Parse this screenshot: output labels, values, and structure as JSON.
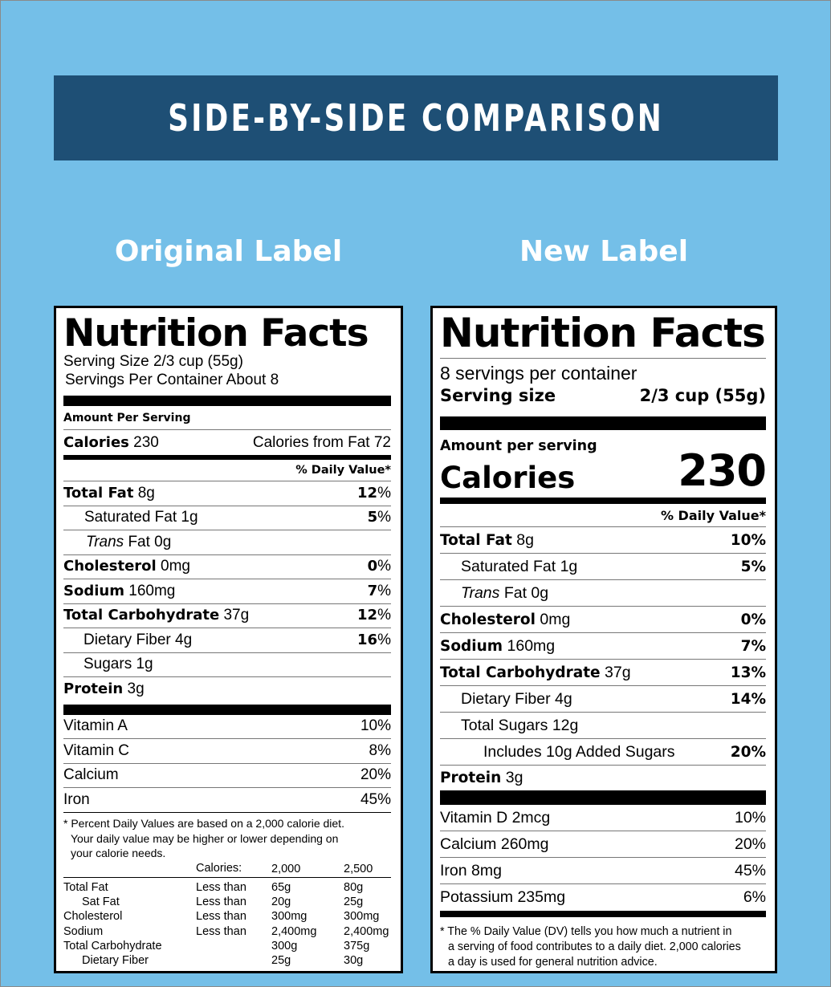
{
  "banner": "SIDE-BY-SIDE COMPARISON",
  "titles": {
    "original": "Original Label",
    "new": "New Label"
  },
  "original": {
    "title": "Nutrition Facts",
    "serving_size": "Serving Size 2/3 cup (55g)",
    "servings_per_container": "Servings Per Container About 8",
    "amount_per_serving": "Amount Per Serving",
    "calories_label": "Calories",
    "calories_value": "230",
    "calories_from_fat": "Calories from Fat 72",
    "daily_value_header": "% Daily Value*",
    "nutrients": [
      {
        "name": "Total Fat",
        "amount": "8g",
        "dv": "12",
        "pct": "%"
      },
      {
        "name": "Saturated Fat",
        "amount": "1g",
        "dv": "5",
        "pct": "%"
      },
      {
        "name": "Trans",
        "name_rest": "Fat 0g"
      },
      {
        "name": "Cholesterol",
        "amount": "0mg",
        "dv": "0",
        "pct": "%"
      },
      {
        "name": "Sodium",
        "amount": "160mg",
        "dv": "7",
        "pct": "%"
      },
      {
        "name": "Total Carbohydrate",
        "amount": "37g",
        "dv": "12",
        "pct": "%"
      },
      {
        "name": "Dietary Fiber",
        "amount": "4g",
        "dv": "16",
        "pct": "%"
      },
      {
        "name": "Sugars",
        "amount": "1g"
      },
      {
        "name": "Protein",
        "amount": "3g"
      }
    ],
    "vitamins": [
      {
        "name": "Vitamin A",
        "dv": "10%"
      },
      {
        "name": "Vitamin C",
        "dv": "8%"
      },
      {
        "name": "Calcium",
        "dv": "20%"
      },
      {
        "name": "Iron",
        "dv": "45%"
      }
    ],
    "footnote": {
      "line1": "* Percent Daily Values are based on a 2,000 calorie diet.",
      "line2": "Your daily value may be higher or lower depending on",
      "line3": "your calorie needs."
    },
    "dv_table": {
      "header": [
        "Calories:",
        "2,000",
        "2,500"
      ],
      "rows": [
        {
          "name": "Total Fat",
          "cond": "Less than",
          "v1": "65g",
          "v2": "80g"
        },
        {
          "name": "Sat Fat",
          "cond": "Less than",
          "v1": "20g",
          "v2": "25g"
        },
        {
          "name": "Cholesterol",
          "cond": "Less than",
          "v1": "300mg",
          "v2": "300mg"
        },
        {
          "name": "Sodium",
          "cond": "Less than",
          "v1": "2,400mg",
          "v2": "2,400mg"
        },
        {
          "name": "Total Carbohydrate",
          "cond": "",
          "v1": "300g",
          "v2": "375g"
        },
        {
          "name": "Dietary Fiber",
          "cond": "",
          "v1": "25g",
          "v2": "30g"
        }
      ]
    }
  },
  "new": {
    "title": "Nutrition Facts",
    "servings_per_container": "8 servings per container",
    "serving_size_label": "Serving size",
    "serving_size_value": "2/3 cup (55g)",
    "amount_per_serving": "Amount per serving",
    "calories_label": "Calories",
    "calories_value": "230",
    "daily_value_header": "% Daily Value*",
    "nutrients": [
      {
        "name": "Total Fat",
        "amount": "8g",
        "dv": "10%"
      },
      {
        "name": "Saturated Fat",
        "amount": "1g",
        "dv": "5%"
      },
      {
        "name": "Trans",
        "name_rest": "Fat 0g"
      },
      {
        "name": "Cholesterol",
        "amount": "0mg",
        "dv": "0%"
      },
      {
        "name": "Sodium",
        "amount": "160mg",
        "dv": "7%"
      },
      {
        "name": "Total Carbohydrate",
        "amount": "37g",
        "dv": "13%"
      },
      {
        "name": "Dietary Fiber",
        "amount": "4g",
        "dv": "14%"
      },
      {
        "name": "Total Sugars",
        "amount": "12g"
      },
      {
        "name": "Includes 10g Added Sugars",
        "dv": "20%"
      },
      {
        "name": "Protein",
        "amount": "3g"
      }
    ],
    "vitamins": [
      {
        "name": "Vitamin D 2mcg",
        "dv": "10%"
      },
      {
        "name": "Calcium 260mg",
        "dv": "20%"
      },
      {
        "name": "Iron 8mg",
        "dv": "45%"
      },
      {
        "name": "Potassium 235mg",
        "dv": "6%"
      }
    ],
    "footnote": {
      "line1": "* The % Daily Value (DV) tells you how much a nutrient in",
      "line2": "a serving of food contributes to a daily diet. 2,000 calories",
      "line3": "a day is used for general nutrition advice."
    }
  }
}
